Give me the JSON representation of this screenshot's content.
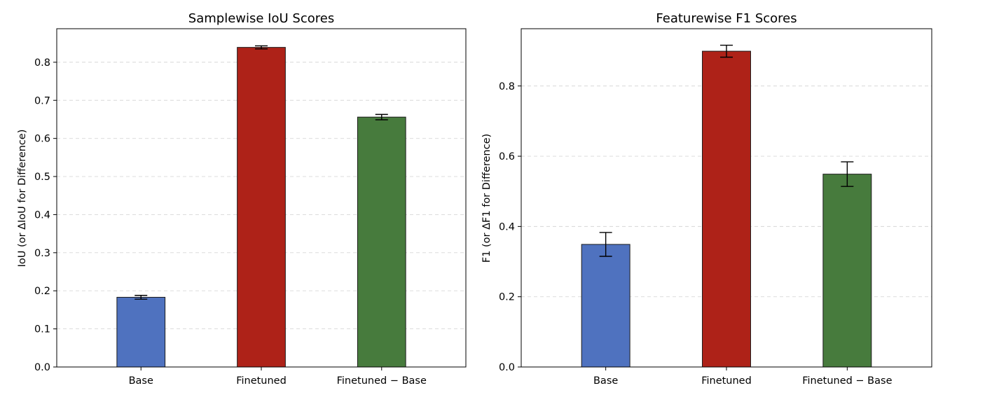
{
  "chart_data": [
    {
      "type": "bar",
      "title": "Samplewise IoU Scores",
      "xlabel": "",
      "ylabel": "IoU (or ΔIoU for Difference)",
      "categories": [
        "Base",
        "Finetuned",
        "Finetuned − Base"
      ],
      "values": [
        0.183,
        0.839,
        0.656
      ],
      "errors": [
        0.005,
        0.004,
        0.007
      ],
      "colors": [
        "#4f72bf",
        "#ae2218",
        "#477b3d"
      ],
      "ylim": [
        0,
        0.888
      ],
      "yticks": [
        0.0,
        0.1,
        0.2,
        0.3,
        0.4,
        0.5,
        0.6,
        0.7,
        0.8
      ],
      "ytick_labels": [
        "0.0",
        "0.1",
        "0.2",
        "0.3",
        "0.4",
        "0.5",
        "0.6",
        "0.7",
        "0.8"
      ],
      "grid": "y-dashed"
    },
    {
      "type": "bar",
      "title": "Featurewise F1 Scores",
      "xlabel": "",
      "ylabel": "F1 (or ΔF1 for Difference)",
      "categories": [
        "Base",
        "Finetuned",
        "Finetuned − Base"
      ],
      "values": [
        0.349,
        0.899,
        0.549
      ],
      "errors": [
        0.034,
        0.017,
        0.035
      ],
      "colors": [
        "#4f72bf",
        "#ae2218",
        "#477b3d"
      ],
      "ylim": [
        0,
        0.963
      ],
      "yticks": [
        0.0,
        0.2,
        0.4,
        0.6,
        0.8
      ],
      "ytick_labels": [
        "0.0",
        "0.2",
        "0.4",
        "0.6",
        "0.8"
      ],
      "grid": "y-dashed"
    }
  ]
}
